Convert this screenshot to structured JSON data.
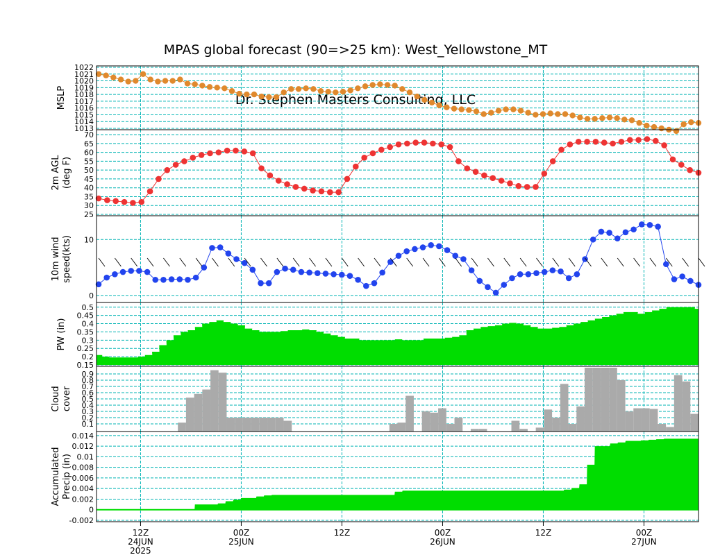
{
  "title": {
    "line1": "MPAS global forecast (90=>25 km): West_Yellowstone_MT",
    "line2": "Dr. Stephen Masters Consulting, LLC"
  },
  "colors": {
    "grid": "#00b3b3",
    "mslp": "#e0892d",
    "temp": "#ee3333",
    "temp_line": "#ee3333",
    "wind": "#2244ee",
    "pw_fill": "#00dd00",
    "cloud": "#aaaaaa",
    "precip": "#00dd00"
  },
  "x_axis": {
    "ticks": [
      {
        "label": "12Z",
        "date": "24JUN",
        "year": "2025",
        "hour": 12
      },
      {
        "label": "00Z",
        "date": "25JUN",
        "year": "",
        "hour": 24
      },
      {
        "label": "12Z",
        "date": "",
        "year": "",
        "hour": 36
      },
      {
        "label": "00Z",
        "date": "26JUN",
        "year": "",
        "hour": 48
      },
      {
        "label": "12Z",
        "date": "",
        "year": "",
        "hour": 60
      },
      {
        "label": "00Z",
        "date": "27JUN",
        "year": "",
        "hour": 72
      }
    ],
    "range": [
      6.75,
      78.5
    ],
    "step_hours": 1
  },
  "chart_data": [
    {
      "type": "line",
      "ylabel": "MSLP",
      "ylim": [
        1013,
        1022
      ],
      "yticks": [
        1013,
        1014,
        1015,
        1016,
        1017,
        1018,
        1019,
        1020,
        1021,
        1022
      ],
      "grid": true,
      "series": [
        {
          "values": [
            1021,
            1020.8,
            1020.5,
            1020.2,
            1019.9,
            1020,
            1021,
            1020.2,
            1019.9,
            1020,
            1020,
            1020.2,
            1019.6,
            1019.5,
            1019.3,
            1019.1,
            1019,
            1018.9,
            1018.5,
            1018.1,
            1018,
            1018,
            1017.7,
            1017.6,
            1017.6,
            1018.3,
            1018.8,
            1018.8,
            1018.9,
            1018.8,
            1018.5,
            1018.4,
            1018.3,
            1018.4,
            1018.6,
            1018.9,
            1019.2,
            1019.4,
            1019.5,
            1019.4,
            1019.3,
            1018.8,
            1018.3,
            1017.7,
            1017.2,
            1016.8,
            1016.4,
            1016.1,
            1015.9,
            1015.8,
            1015.7,
            1015.5,
            1015.1,
            1015.3,
            1015.6,
            1015.8,
            1015.8,
            1015.6,
            1015.3,
            1015,
            1015.1,
            1015.2,
            1015.1,
            1015.1,
            1014.9,
            1014.6,
            1014.4,
            1014.4,
            1014.5,
            1014.6,
            1014.5,
            1014.3,
            1014.2,
            1013.8,
            1013.4,
            1013.2,
            1013,
            1012.8,
            1012.6,
            1013.6,
            1013.9,
            1013.8
          ]
        }
      ]
    },
    {
      "type": "line",
      "ylabel": "2m AGL",
      "ylabel2": "(deg F)",
      "ylim": [
        25,
        72
      ],
      "yticks": [
        25,
        30,
        35,
        40,
        45,
        50,
        55,
        60,
        65,
        70
      ],
      "grid": true,
      "series": [
        {
          "values": [
            34,
            33,
            32.5,
            32,
            31.5,
            32,
            38,
            45,
            50,
            53,
            55,
            57,
            58.5,
            59.5,
            60,
            61,
            61,
            60.5,
            59.5,
            51,
            47,
            44,
            42,
            40.5,
            39.5,
            38.5,
            38,
            37.5,
            37.5,
            45,
            52,
            57,
            59.5,
            61.5,
            63,
            64.5,
            65,
            65.5,
            65.5,
            65,
            64.5,
            63,
            55,
            51,
            49,
            47,
            45.5,
            44,
            42.5,
            41,
            40.5,
            40.5,
            48,
            55,
            61.5,
            64.5,
            66,
            66,
            66,
            65.5,
            65,
            66,
            67,
            67,
            67.5,
            66.5,
            64,
            56,
            53,
            50,
            48.5
          ]
        }
      ]
    },
    {
      "type": "line",
      "ylabel": "10m wind",
      "ylabel2": "speed(kts)",
      "ylim": [
        -1,
        14
      ],
      "yticks": [
        0,
        10
      ],
      "grid": true,
      "series": [
        {
          "values": [
            2,
            3.2,
            3.8,
            4.2,
            4.4,
            4.4,
            4.2,
            2.8,
            2.8,
            2.9,
            2.9,
            2.8,
            3.2,
            5,
            8.5,
            8.6,
            7.5,
            6.5,
            5.8,
            4.6,
            2.2,
            2.2,
            4.2,
            4.8,
            4.6,
            4.2,
            4.1,
            4,
            3.9,
            3.8,
            3.7,
            3.5,
            2.8,
            1.7,
            2.2,
            4.1,
            6,
            7.1,
            7.9,
            8.3,
            8.6,
            9,
            8.8,
            8.1,
            7.1,
            6.5,
            4.5,
            2.6,
            1.5,
            0.5,
            1.9,
            3.1,
            3.8,
            3.8,
            4,
            4.2,
            4.5,
            4.3,
            3.1,
            3.8,
            6.5,
            10,
            11.4,
            11.2,
            10.2,
            11.3,
            11.8,
            12.7,
            12.6,
            12.3,
            5.6,
            2.9,
            3.4,
            2.6,
            1.9
          ]
        }
      ]
    },
    {
      "type": "area",
      "ylabel": "PW (in)",
      "ylim": [
        0.15,
        0.52
      ],
      "yticks": [
        0.15,
        0.2,
        0.25,
        0.3,
        0.35,
        0.4,
        0.45,
        0.5
      ],
      "grid": true,
      "series": [
        {
          "values": [
            0.21,
            0.2,
            0.195,
            0.195,
            0.195,
            0.195,
            0.2,
            0.21,
            0.23,
            0.27,
            0.3,
            0.33,
            0.35,
            0.36,
            0.38,
            0.4,
            0.41,
            0.42,
            0.41,
            0.4,
            0.39,
            0.37,
            0.36,
            0.35,
            0.35,
            0.35,
            0.355,
            0.36,
            0.36,
            0.365,
            0.36,
            0.35,
            0.34,
            0.33,
            0.32,
            0.31,
            0.31,
            0.3,
            0.3,
            0.3,
            0.3,
            0.3,
            0.305,
            0.3,
            0.3,
            0.3,
            0.31,
            0.31,
            0.31,
            0.315,
            0.32,
            0.33,
            0.36,
            0.37,
            0.38,
            0.385,
            0.39,
            0.4,
            0.405,
            0.4,
            0.39,
            0.38,
            0.37,
            0.37,
            0.375,
            0.38,
            0.39,
            0.4,
            0.41,
            0.42,
            0.43,
            0.44,
            0.45,
            0.46,
            0.47,
            0.47,
            0.46,
            0.47,
            0.48,
            0.49,
            0.5,
            0.5,
            0.5,
            0.5,
            0.49
          ]
        }
      ]
    },
    {
      "type": "bar",
      "ylabel": "Cloud",
      "ylabel2": "cover",
      "ylim": [
        0,
        1
      ],
      "yticks": [
        0.1,
        0.2,
        0.3,
        0.4,
        0.5,
        0.6,
        0.7,
        0.8,
        0.9
      ],
      "grid": true,
      "values": [
        0,
        0,
        0,
        0,
        0,
        0,
        0,
        0,
        0,
        0,
        0.12,
        0.52,
        0.58,
        0.65,
        0.96,
        0.92,
        0.2,
        0.2,
        0.2,
        0.2,
        0.2,
        0.2,
        0.2,
        0.15,
        0,
        0,
        0,
        0,
        0,
        0,
        0,
        0,
        0,
        0,
        0,
        0,
        0.1,
        0.12,
        0.55,
        0,
        0.3,
        0.28,
        0.35,
        0.1,
        0.2,
        0,
        0.02,
        0.02,
        0,
        0,
        0,
        0.15,
        0.02,
        0,
        0.04,
        0.33,
        0.2,
        0.74,
        0.1,
        0.38,
        1,
        1,
        1,
        1,
        0.8,
        0.3,
        0.35,
        0.35,
        0.34,
        0.1,
        0.05,
        0.88,
        0.78,
        0.26
      ]
    },
    {
      "type": "area",
      "ylabel": "Accumulated",
      "ylabel2": "Precip (in)",
      "ylim": [
        -0.002,
        0.0145
      ],
      "yticks": [
        -0.002,
        0,
        0.002,
        0.004,
        0.006,
        0.008,
        0.01,
        0.012,
        0.014
      ],
      "grid": true,
      "series": [
        {
          "values": [
            0,
            0,
            0,
            0,
            0,
            0,
            0,
            0,
            0,
            0,
            0,
            0,
            0,
            0.001,
            0.001,
            0.001,
            0.0012,
            0.0016,
            0.0019,
            0.0022,
            0.0022,
            0.0025,
            0.0027,
            0.0028,
            0.0028,
            0.0028,
            0.0028,
            0.0028,
            0.0028,
            0.0028,
            0.0028,
            0.0028,
            0.0028,
            0.0028,
            0.0028,
            0.0028,
            0.0028,
            0.0028,
            0.0028,
            0.0034,
            0.0036,
            0.0036,
            0.0036,
            0.0036,
            0.0036,
            0.0036,
            0.0036,
            0.0036,
            0.0036,
            0.0036,
            0.0036,
            0.0036,
            0.0036,
            0.0036,
            0.0036,
            0.0036,
            0.0036,
            0.0036,
            0.0036,
            0.0036,
            0.0036,
            0.0038,
            0.0041,
            0.0048,
            0.0085,
            0.012,
            0.012,
            0.0125,
            0.0127,
            0.013,
            0.013,
            0.0131,
            0.0132,
            0.0133,
            0.0134,
            0.0134,
            0.0134,
            0.0134,
            0.0134
          ]
        }
      ]
    }
  ]
}
